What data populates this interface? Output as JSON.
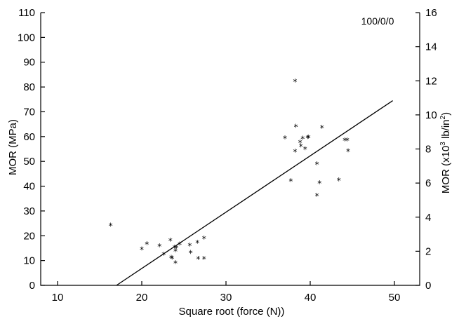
{
  "chart_data": {
    "type": "scatter",
    "annotation": "100/0/0",
    "xlabel": "Square root (force (N))",
    "ylabel_left": "MOR (MPa)",
    "ylabel_right_parts": [
      "MOR (x10",
      "3",
      " lb/in",
      "2",
      ")"
    ],
    "xlim": [
      8,
      53
    ],
    "ylim": [
      0,
      110
    ],
    "y2lim": [
      0,
      16
    ],
    "x_ticks": [
      10,
      20,
      30,
      40,
      50
    ],
    "y_ticks": [
      0,
      10,
      20,
      30,
      40,
      50,
      60,
      70,
      80,
      90,
      100,
      110
    ],
    "y2_ticks": [
      0,
      2,
      4,
      6,
      8,
      10,
      12,
      14,
      16
    ],
    "grid": false,
    "marker": "*",
    "points": [
      {
        "x": 16.3,
        "y": 24.2
      },
      {
        "x": 20.0,
        "y": 14.5
      },
      {
        "x": 20.6,
        "y": 16.7
      },
      {
        "x": 22.1,
        "y": 15.9
      },
      {
        "x": 22.6,
        "y": 12.4
      },
      {
        "x": 23.4,
        "y": 18.1
      },
      {
        "x": 23.5,
        "y": 11.1
      },
      {
        "x": 23.6,
        "y": 10.9
      },
      {
        "x": 23.9,
        "y": 15.2
      },
      {
        "x": 24.0,
        "y": 13.8
      },
      {
        "x": 24.0,
        "y": 9.1
      },
      {
        "x": 24.1,
        "y": 15.1
      },
      {
        "x": 24.5,
        "y": 16.6
      },
      {
        "x": 25.7,
        "y": 16.1
      },
      {
        "x": 25.8,
        "y": 13.2
      },
      {
        "x": 26.6,
        "y": 17.3
      },
      {
        "x": 26.7,
        "y": 10.7
      },
      {
        "x": 27.4,
        "y": 10.8
      },
      {
        "x": 27.4,
        "y": 18.9
      },
      {
        "x": 37.0,
        "y": 59.4
      },
      {
        "x": 37.7,
        "y": 42.1
      },
      {
        "x": 38.2,
        "y": 82.3
      },
      {
        "x": 38.2,
        "y": 54.0
      },
      {
        "x": 38.3,
        "y": 64.1
      },
      {
        "x": 38.8,
        "y": 57.7
      },
      {
        "x": 38.9,
        "y": 56.2
      },
      {
        "x": 39.1,
        "y": 59.2
      },
      {
        "x": 39.4,
        "y": 55.0
      },
      {
        "x": 39.7,
        "y": 59.5
      },
      {
        "x": 39.8,
        "y": 59.7
      },
      {
        "x": 40.8,
        "y": 48.9
      },
      {
        "x": 40.8,
        "y": 36.2
      },
      {
        "x": 41.1,
        "y": 41.3
      },
      {
        "x": 41.4,
        "y": 63.6
      },
      {
        "x": 43.4,
        "y": 42.4
      },
      {
        "x": 44.1,
        "y": 58.6
      },
      {
        "x": 44.4,
        "y": 58.5
      },
      {
        "x": 44.5,
        "y": 54.1
      }
    ],
    "fit_line": {
      "x": [
        17.0,
        49.8
      ],
      "y": [
        0,
        74.5
      ]
    }
  }
}
